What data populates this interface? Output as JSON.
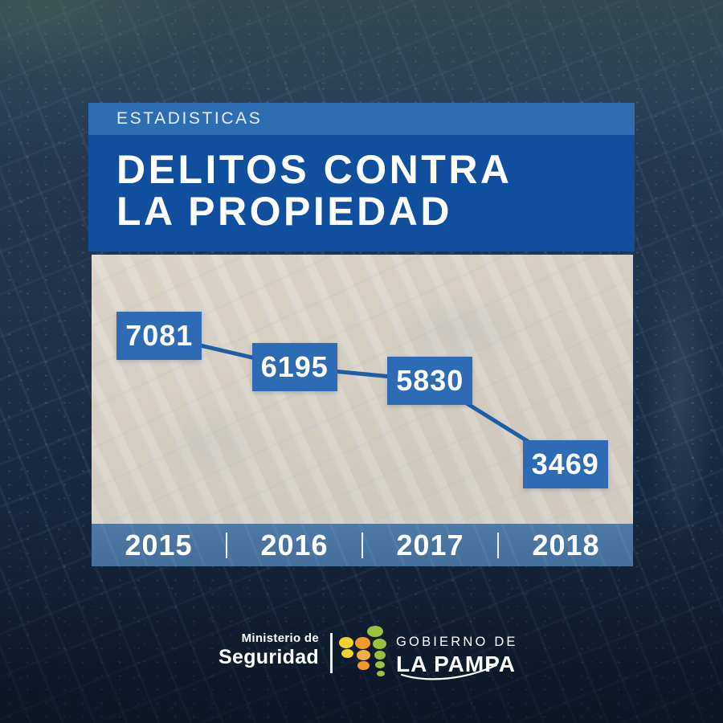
{
  "header": {
    "kicker": "ESTADISTICAS",
    "title_line1": "DELITOS CONTRA",
    "title_line2": "LA PROPIEDAD"
  },
  "chart_data": {
    "type": "line",
    "title": "DELITOS CONTRA LA PROPIEDAD",
    "categories": [
      "2015",
      "2016",
      "2017",
      "2018"
    ],
    "values": [
      7081,
      6195,
      5830,
      3469
    ],
    "xlabel": "",
    "ylabel": "",
    "grid": false,
    "legend_position": "none",
    "value_labels_shown": true
  },
  "footer": {
    "ministry_line1": "Ministerio de",
    "ministry_line2": "Seguridad",
    "government_line1": "GOBIERNO DE",
    "government_line2": "LA PAMPA",
    "logo_name": "gobierno-de-la-pampa-dots-logo"
  },
  "colors": {
    "kicker_band": "#2f6db3",
    "title_band": "#0f4f9e",
    "data_box": "#2d6cb5",
    "trend_line": "#1d5fa6",
    "years_band": "#4a76a3",
    "panel_overlay": "#d6cfc2",
    "logo_yellow": "#efd431",
    "logo_orange": "#f3992b",
    "logo_orange_light": "#f6ab4a",
    "logo_green": "#97c33d"
  }
}
